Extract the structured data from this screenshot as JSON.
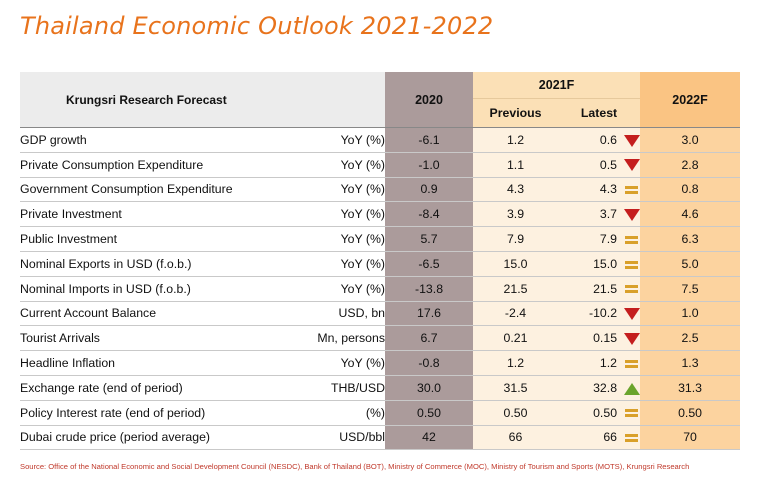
{
  "title": "Thailand Economic Outlook 2021-2022",
  "header": {
    "left_label": "Krungsri Research Forecast",
    "col_2020": "2020",
    "col_2021": "2021F",
    "col_previous": "Previous",
    "col_latest": "Latest",
    "col_2022": "2022F"
  },
  "rows": [
    {
      "indicator": "GDP growth",
      "unit": "YoY (%)",
      "y2020": "-6.1",
      "previous": "1.2",
      "latest": "0.6",
      "trend": "down",
      "y2022": "3.0"
    },
    {
      "indicator": "Private Consumption Expenditure",
      "unit": "YoY (%)",
      "y2020": "-1.0",
      "previous": "1.1",
      "latest": "0.5",
      "trend": "down",
      "y2022": "2.8"
    },
    {
      "indicator": "Government Consumption Expenditure",
      "unit": "YoY (%)",
      "y2020": "0.9",
      "previous": "4.3",
      "latest": "4.3",
      "trend": "unchanged",
      "y2022": "0.8"
    },
    {
      "indicator": "Private Investment",
      "unit": "YoY (%)",
      "y2020": "-8.4",
      "previous": "3.9",
      "latest": "3.7",
      "trend": "down",
      "y2022": "4.6"
    },
    {
      "indicator": "Public Investment",
      "unit": "YoY (%)",
      "y2020": "5.7",
      "previous": "7.9",
      "latest": "7.9",
      "trend": "unchanged",
      "y2022": "6.3"
    },
    {
      "indicator": "Nominal Exports in USD (f.o.b.)",
      "unit": "YoY (%)",
      "y2020": "-6.5",
      "previous": "15.0",
      "latest": "15.0",
      "trend": "unchanged",
      "y2022": "5.0"
    },
    {
      "indicator": "Nominal Imports in USD (f.o.b.)",
      "unit": "YoY (%)",
      "y2020": "-13.8",
      "previous": "21.5",
      "latest": "21.5",
      "trend": "unchanged",
      "y2022": "7.5"
    },
    {
      "indicator": "Current Account Balance",
      "unit": "USD, bn",
      "y2020": "17.6",
      "previous": "-2.4",
      "latest": "-10.2",
      "trend": "down",
      "y2022": "1.0"
    },
    {
      "indicator": "Tourist Arrivals",
      "unit": "Mn, persons",
      "y2020": "6.7",
      "previous": "0.21",
      "latest": "0.15",
      "trend": "down",
      "y2022": "2.5"
    },
    {
      "indicator": "Headline Inflation",
      "unit": "YoY (%)",
      "y2020": "-0.8",
      "previous": "1.2",
      "latest": "1.2",
      "trend": "unchanged",
      "y2022": "1.3"
    },
    {
      "indicator": "Exchange rate (end of period)",
      "unit": "THB/USD",
      "y2020": "30.0",
      "previous": "31.5",
      "latest": "32.8",
      "trend": "up",
      "y2022": "31.3"
    },
    {
      "indicator": "Policy Interest rate (end of period)",
      "unit": "(%)",
      "y2020": "0.50",
      "previous": "0.50",
      "latest": "0.50",
      "trend": "unchanged",
      "y2022": "0.50"
    },
    {
      "indicator": "Dubai crude price (period average)",
      "unit": "USD/bbl",
      "y2020": "42",
      "previous": "66",
      "latest": "66",
      "trend": "unchanged",
      "y2022": "70"
    }
  ],
  "trend_icons": {
    "down": {
      "icon": "down-triangle-icon",
      "color": "#c41e1e"
    },
    "up": {
      "icon": "up-triangle-icon",
      "color": "#6aa42c"
    },
    "unchanged": {
      "icon": "equal-sign-icon",
      "color": "#d9a02a"
    }
  },
  "colors": {
    "title": "#e8731c",
    "col_2020_bg": "#ab9b9b",
    "col_2021_header_bg": "#fbe0b6",
    "col_2021_body_bg": "#fdf1e0",
    "col_2022_header_bg": "#fac483",
    "col_2022_body_bg": "#fcd39f"
  },
  "source": "Source: Office of the National Economic and Social Development Council (NESDC), Bank of Thailand (BOT), Ministry of Commerce (MOC), Ministry of Tourism and Sports (MOTS), Krungsri Research"
}
